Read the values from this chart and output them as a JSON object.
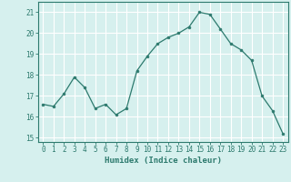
{
  "x": [
    0,
    1,
    2,
    3,
    4,
    5,
    6,
    7,
    8,
    9,
    10,
    11,
    12,
    13,
    14,
    15,
    16,
    17,
    18,
    19,
    20,
    21,
    22,
    23
  ],
  "y": [
    16.6,
    16.5,
    17.1,
    17.9,
    17.4,
    16.4,
    16.6,
    16.1,
    16.4,
    18.2,
    18.9,
    19.5,
    19.8,
    20.0,
    20.3,
    21.0,
    20.9,
    20.2,
    19.5,
    19.2,
    18.7,
    17.0,
    16.3,
    15.2
  ],
  "xlabel": "Humidex (Indice chaleur)",
  "ylim": [
    14.8,
    21.5
  ],
  "xlim": [
    -0.5,
    23.5
  ],
  "yticks": [
    15,
    16,
    17,
    18,
    19,
    20,
    21
  ],
  "xticks": [
    0,
    1,
    2,
    3,
    4,
    5,
    6,
    7,
    8,
    9,
    10,
    11,
    12,
    13,
    14,
    15,
    16,
    17,
    18,
    19,
    20,
    21,
    22,
    23
  ],
  "line_color": "#2d7a6e",
  "marker_color": "#2d7a6e",
  "bg_color": "#d6f0ee",
  "grid_color": "#ffffff",
  "axis_color": "#2d7a6e",
  "label_fontsize": 6.5,
  "tick_fontsize": 5.5
}
